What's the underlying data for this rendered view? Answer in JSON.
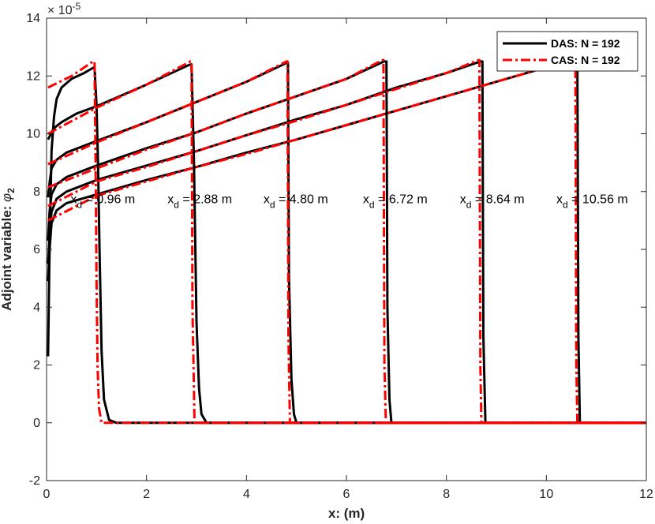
{
  "chart_data": {
    "type": "line",
    "title": "",
    "xlabel": "x: (m)",
    "ylabel_text": "Adjoint variable: ",
    "ylabel_symbol": "φ",
    "ylabel_subscript": "2",
    "y_multiplier_base": "× 10",
    "y_multiplier_exp": "-5",
    "xlim": [
      0,
      12
    ],
    "ylim": [
      -2,
      14
    ],
    "x_ticks": [
      0,
      2,
      4,
      6,
      8,
      10,
      12
    ],
    "y_ticks": [
      -2,
      0,
      2,
      4,
      6,
      8,
      10,
      12,
      14
    ],
    "grid": false,
    "legend_position": "top-right",
    "legend": [
      {
        "label": "DAS: N = 192",
        "color": "#000000",
        "style": "solid"
      },
      {
        "label": "CAS: N = 192",
        "color": "#ff0000",
        "style": "dash-dot"
      }
    ],
    "series": [
      {
        "name": "DAS: N = 192",
        "color": "#000000",
        "style": "solid",
        "curves": [
          {
            "xd": 0.96,
            "points": [
              [
                0.03,
                2.3
              ],
              [
                0.06,
                6.0
              ],
              [
                0.1,
                9.4
              ],
              [
                0.15,
                10.6
              ],
              [
                0.2,
                11.2
              ],
              [
                0.3,
                11.6
              ],
              [
                0.5,
                11.9
              ],
              [
                0.75,
                12.1
              ],
              [
                0.93,
                12.28
              ],
              [
                0.96,
                12.3
              ],
              [
                1.0,
                11.0
              ],
              [
                1.03,
                9.0
              ],
              [
                1.06,
                6.0
              ],
              [
                1.1,
                2.5
              ],
              [
                1.15,
                0.8
              ],
              [
                1.25,
                0.1
              ],
              [
                1.4,
                0
              ],
              [
                12,
                0
              ]
            ]
          },
          {
            "xd": 2.88,
            "points": [
              [
                0.03,
                9.8
              ],
              [
                0.06,
                9.9
              ],
              [
                0.1,
                10.05
              ],
              [
                0.15,
                10.2
              ],
              [
                0.3,
                10.4
              ],
              [
                0.6,
                10.7
              ],
              [
                1.0,
                10.95
              ],
              [
                2.0,
                11.7
              ],
              [
                2.85,
                12.38
              ],
              [
                2.9,
                12.4
              ],
              [
                2.95,
                9.0
              ],
              [
                3.0,
                3.5
              ],
              [
                3.05,
                1.2
              ],
              [
                3.1,
                0.3
              ],
              [
                3.2,
                0
              ],
              [
                12,
                0
              ]
            ]
          },
          {
            "xd": 4.8,
            "points": [
              [
                0.03,
                7.8
              ],
              [
                0.06,
                8.3
              ],
              [
                0.1,
                8.8
              ],
              [
                0.2,
                9.1
              ],
              [
                0.4,
                9.35
              ],
              [
                1.0,
                9.75
              ],
              [
                2.0,
                10.4
              ],
              [
                3.0,
                11.1
              ],
              [
                4.0,
                11.8
              ],
              [
                4.8,
                12.45
              ],
              [
                4.83,
                12.45
              ],
              [
                4.85,
                5.0
              ],
              [
                4.9,
                1.5
              ],
              [
                4.95,
                0.3
              ],
              [
                5.0,
                0
              ],
              [
                12,
                0
              ]
            ]
          },
          {
            "xd": 6.72,
            "points": [
              [
                0.03,
                6.3
              ],
              [
                0.06,
                7.3
              ],
              [
                0.1,
                7.9
              ],
              [
                0.2,
                8.25
              ],
              [
                0.4,
                8.5
              ],
              [
                1.0,
                8.9
              ],
              [
                2.0,
                9.5
              ],
              [
                3.0,
                10.05
              ],
              [
                4.0,
                10.7
              ],
              [
                5.0,
                11.3
              ],
              [
                6.0,
                11.9
              ],
              [
                6.75,
                12.5
              ],
              [
                6.8,
                12.5
              ],
              [
                6.82,
                4.0
              ],
              [
                6.86,
                0.8
              ],
              [
                6.9,
                0
              ],
              [
                12,
                0
              ]
            ]
          },
          {
            "xd": 8.64,
            "points": [
              [
                0.03,
                5.5
              ],
              [
                0.06,
                6.5
              ],
              [
                0.1,
                7.3
              ],
              [
                0.2,
                7.75
              ],
              [
                0.4,
                8.0
              ],
              [
                1.0,
                8.4
              ],
              [
                2.0,
                8.9
              ],
              [
                3.0,
                9.4
              ],
              [
                4.0,
                9.95
              ],
              [
                5.0,
                10.5
              ],
              [
                6.0,
                11.0
              ],
              [
                7.0,
                11.6
              ],
              [
                8.0,
                12.1
              ],
              [
                8.68,
                12.5
              ],
              [
                8.72,
                12.5
              ],
              [
                8.74,
                3.0
              ],
              [
                8.78,
                0
              ],
              [
                12,
                0
              ]
            ]
          },
          {
            "xd": 10.56,
            "points": [
              [
                0.03,
                4.9
              ],
              [
                0.06,
                6.0
              ],
              [
                0.1,
                6.9
              ],
              [
                0.2,
                7.35
              ],
              [
                0.4,
                7.6
              ],
              [
                1.0,
                7.9
              ],
              [
                2.0,
                8.4
              ],
              [
                3.0,
                8.85
              ],
              [
                4.0,
                9.35
              ],
              [
                5.0,
                9.8
              ],
              [
                6.0,
                10.3
              ],
              [
                7.0,
                10.8
              ],
              [
                8.0,
                11.3
              ],
              [
                9.0,
                11.8
              ],
              [
                10.0,
                12.3
              ],
              [
                10.6,
                12.6
              ],
              [
                10.62,
                12.6
              ],
              [
                10.64,
                3.0
              ],
              [
                10.67,
                0
              ],
              [
                12,
                0
              ]
            ]
          }
        ]
      },
      {
        "name": "CAS: N = 192",
        "color": "#ff0000",
        "style": "dash-dot",
        "curves": [
          {
            "xd": 0.96,
            "points": [
              [
                0.03,
                11.6
              ],
              [
                0.5,
                12.0
              ],
              [
                0.93,
                12.5
              ],
              [
                0.96,
                12.5
              ],
              [
                0.98,
                9.0
              ],
              [
                1.0,
                5.0
              ],
              [
                1.02,
                2.0
              ],
              [
                1.05,
                0.5
              ],
              [
                1.1,
                0
              ],
              [
                12,
                0
              ]
            ]
          },
          {
            "xd": 2.88,
            "points": [
              [
                0.03,
                10.0
              ],
              [
                1.0,
                10.9
              ],
              [
                2.0,
                11.7
              ],
              [
                2.88,
                12.5
              ],
              [
                2.9,
                12.5
              ],
              [
                2.92,
                4.0
              ],
              [
                2.96,
                0
              ],
              [
                12,
                0
              ]
            ]
          },
          {
            "xd": 4.8,
            "points": [
              [
                0.03,
                8.95
              ],
              [
                1.0,
                9.7
              ],
              [
                2.0,
                10.4
              ],
              [
                3.0,
                11.1
              ],
              [
                4.0,
                11.8
              ],
              [
                4.8,
                12.5
              ],
              [
                4.82,
                12.5
              ],
              [
                4.84,
                3.0
              ],
              [
                4.87,
                0
              ],
              [
                12,
                0
              ]
            ]
          },
          {
            "xd": 6.72,
            "points": [
              [
                0.03,
                8.15
              ],
              [
                1.0,
                8.8
              ],
              [
                2.0,
                9.45
              ],
              [
                3.0,
                10.05
              ],
              [
                4.0,
                10.7
              ],
              [
                5.0,
                11.3
              ],
              [
                6.0,
                11.9
              ],
              [
                6.72,
                12.55
              ],
              [
                6.74,
                12.55
              ],
              [
                6.76,
                2.0
              ],
              [
                6.79,
                0
              ],
              [
                12,
                0
              ]
            ]
          },
          {
            "xd": 8.64,
            "points": [
              [
                0.03,
                7.5
              ],
              [
                1.0,
                8.35
              ],
              [
                2.0,
                8.85
              ],
              [
                3.0,
                9.4
              ],
              [
                4.0,
                9.95
              ],
              [
                5.0,
                10.45
              ],
              [
                6.0,
                11.0
              ],
              [
                7.0,
                11.55
              ],
              [
                8.0,
                12.1
              ],
              [
                8.64,
                12.55
              ],
              [
                8.66,
                12.55
              ],
              [
                8.68,
                2.0
              ],
              [
                8.7,
                0
              ],
              [
                12,
                0
              ]
            ]
          },
          {
            "xd": 10.56,
            "points": [
              [
                0.03,
                7.0
              ],
              [
                1.0,
                7.85
              ],
              [
                2.0,
                8.35
              ],
              [
                3.0,
                8.85
              ],
              [
                4.0,
                9.3
              ],
              [
                5.0,
                9.8
              ],
              [
                6.0,
                10.3
              ],
              [
                7.0,
                10.8
              ],
              [
                8.0,
                11.3
              ],
              [
                9.0,
                11.8
              ],
              [
                10.0,
                12.3
              ],
              [
                10.56,
                12.6
              ],
              [
                10.58,
                12.6
              ],
              [
                10.6,
                2.0
              ],
              [
                10.62,
                0
              ],
              [
                12,
                0
              ]
            ]
          }
        ]
      }
    ],
    "annotations": [
      {
        "prefix": "x",
        "sub": "d",
        "text": " = 0.96 m",
        "x": 0.48,
        "y": 7.6
      },
      {
        "prefix": "x",
        "sub": "d",
        "text": " = 2.88 m",
        "x": 2.42,
        "y": 7.6
      },
      {
        "prefix": "x",
        "sub": "d",
        "text": " = 4.80 m",
        "x": 4.34,
        "y": 7.6
      },
      {
        "prefix": "x",
        "sub": "d",
        "text": " = 6.72 m",
        "x": 6.33,
        "y": 7.6
      },
      {
        "prefix": "x",
        "sub": "d",
        "text": " = 8.64 m",
        "x": 8.27,
        "y": 7.6
      },
      {
        "prefix": "x",
        "sub": "d",
        "text": " = 10.56 m",
        "x": 10.2,
        "y": 7.6
      }
    ]
  }
}
